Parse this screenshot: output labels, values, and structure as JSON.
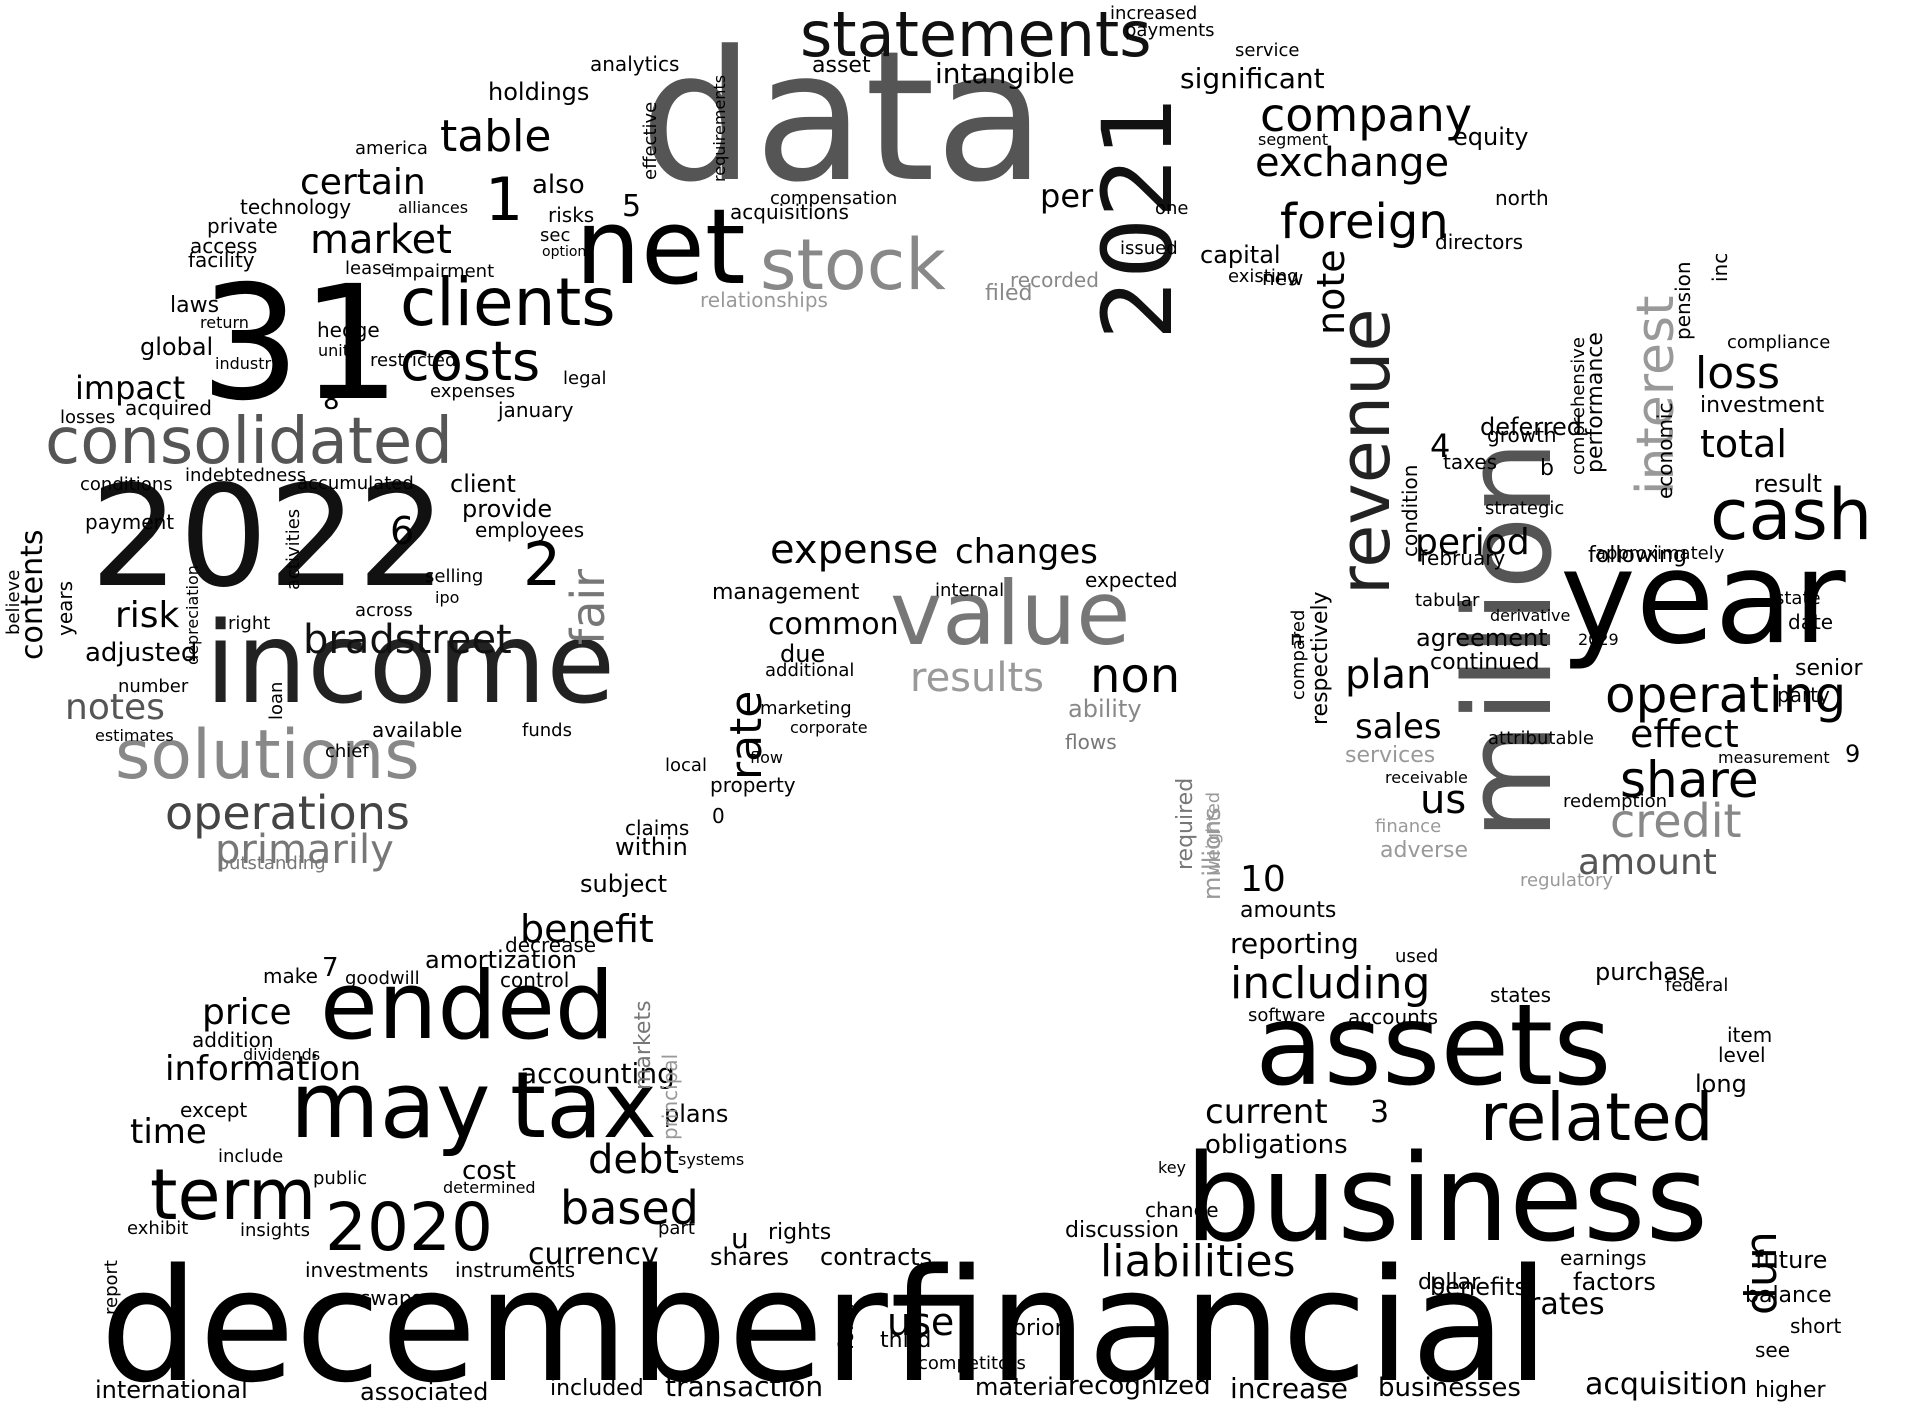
{
  "words": [
    {
      "text": "data",
      "color": "#555555"
    },
    {
      "text": "december",
      "color": "#000000"
    },
    {
      "text": "financial",
      "color": "#000000"
    },
    {
      "text": "business",
      "color": "#000000"
    },
    {
      "text": "assets",
      "color": "#000000"
    },
    {
      "text": "million",
      "color": "#555555"
    },
    {
      "text": "year",
      "color": "#000000"
    },
    {
      "text": "2022",
      "color": "#111111"
    },
    {
      "text": "income",
      "color": "#222222"
    },
    {
      "text": "31",
      "color": "#000000"
    },
    {
      "text": "2021",
      "color": "#111111"
    },
    {
      "text": "net",
      "color": "#000000"
    },
    {
      "text": "ended",
      "color": "#000000"
    },
    {
      "text": "may",
      "color": "#000000"
    },
    {
      "text": "tax",
      "color": "#000000"
    },
    {
      "text": "revenue",
      "color": "#222222"
    },
    {
      "text": "value",
      "color": "#777777"
    },
    {
      "text": "stock",
      "color": "#888888"
    },
    {
      "text": "statements",
      "color": "#111111"
    },
    {
      "text": "consolidated",
      "color": "#555555"
    },
    {
      "text": "solutions",
      "color": "#888888"
    },
    {
      "text": "clients",
      "color": "#000000"
    },
    {
      "text": "costs",
      "color": "#000000"
    },
    {
      "text": "term",
      "color": "#000000"
    },
    {
      "text": "2020",
      "color": "#000000"
    },
    {
      "text": "related",
      "color": "#000000"
    },
    {
      "text": "interest",
      "color": "#999999"
    },
    {
      "text": "cash",
      "color": "#000000"
    },
    {
      "text": "liabilities",
      "color": "#000000"
    },
    {
      "text": "fair",
      "color": "#777777"
    },
    {
      "text": "operations",
      "color": "#444444"
    },
    {
      "text": "primarily",
      "color": "#777777"
    },
    {
      "text": "bradstreet",
      "color": "#111111"
    },
    {
      "text": "foreign",
      "color": "#000000"
    },
    {
      "text": "company",
      "color": "#000000"
    },
    {
      "text": "exchange",
      "color": "#000000"
    },
    {
      "text": "share",
      "color": "#000000"
    },
    {
      "text": "operating",
      "color": "#000000"
    },
    {
      "text": "credit",
      "color": "#888888"
    },
    {
      "text": "including",
      "color": "#000000"
    },
    {
      "text": "based",
      "color": "#000000"
    },
    {
      "text": "debt",
      "color": "#000000"
    },
    {
      "text": "expense",
      "color": "#000000"
    },
    {
      "text": "changes",
      "color": "#000000"
    },
    {
      "text": "results",
      "color": "#999999"
    },
    {
      "text": "non",
      "color": "#000000"
    },
    {
      "text": "rate",
      "color": "#000000"
    },
    {
      "text": "table",
      "color": "#000000"
    },
    {
      "text": "certain",
      "color": "#000000"
    },
    {
      "text": "market",
      "color": "#000000"
    },
    {
      "text": "risk",
      "color": "#000000"
    },
    {
      "text": "notes",
      "color": "#555555"
    },
    {
      "text": "impact",
      "color": "#000000"
    },
    {
      "text": "benefit",
      "color": "#000000"
    },
    {
      "text": "information",
      "color": "#000000"
    },
    {
      "text": "price",
      "color": "#000000"
    },
    {
      "text": "time",
      "color": "#000000"
    },
    {
      "text": "current",
      "color": "#000000"
    },
    {
      "text": "obligations",
      "color": "#000000"
    },
    {
      "text": "loss",
      "color": "#000000"
    },
    {
      "text": "total",
      "color": "#000000"
    },
    {
      "text": "plan",
      "color": "#000000"
    },
    {
      "text": "sales",
      "color": "#000000"
    },
    {
      "text": "us",
      "color": "#000000"
    },
    {
      "text": "effect",
      "color": "#000000"
    },
    {
      "text": "amount",
      "color": "#555555"
    },
    {
      "text": "period",
      "color": "#000000"
    },
    {
      "text": "note",
      "color": "#000000"
    },
    {
      "text": "dun",
      "color": "#000000"
    },
    {
      "text": "rates",
      "color": "#000000"
    },
    {
      "text": "use",
      "color": "#000000"
    },
    {
      "text": "transaction",
      "color": "#000000"
    },
    {
      "text": "acquisition",
      "color": "#000000"
    },
    {
      "text": "increase",
      "color": "#000000"
    },
    {
      "text": "businesses",
      "color": "#000000"
    },
    {
      "text": "international",
      "color": "#000000"
    },
    {
      "text": "associated",
      "color": "#000000"
    },
    {
      "text": "material",
      "color": "#000000"
    },
    {
      "text": "recognized",
      "color": "#000000"
    },
    {
      "text": "also",
      "color": "#000000"
    },
    {
      "text": "intangible",
      "color": "#000000"
    },
    {
      "text": "significant",
      "color": "#000000"
    },
    {
      "text": "holdings",
      "color": "#000000"
    },
    {
      "text": "analytics",
      "color": "#000000"
    },
    {
      "text": "per",
      "color": "#000000"
    },
    {
      "text": "accounting",
      "color": "#000000"
    },
    {
      "text": "cost",
      "color": "#000000"
    },
    {
      "text": "currency",
      "color": "#000000"
    },
    {
      "text": "contracts",
      "color": "#000000"
    },
    {
      "text": "shares",
      "color": "#000000"
    },
    {
      "text": "future",
      "color": "#000000"
    },
    {
      "text": "earnings",
      "color": "#000000"
    },
    {
      "text": "dollar",
      "color": "#000000"
    },
    {
      "text": "long",
      "color": "#000000"
    },
    {
      "text": "purchase",
      "color": "#000000"
    },
    {
      "text": "reporting",
      "color": "#000000"
    },
    {
      "text": "amounts",
      "color": "#000000"
    },
    {
      "text": "within",
      "color": "#000000"
    },
    {
      "text": "subject",
      "color": "#000000"
    },
    {
      "text": "management",
      "color": "#000000"
    },
    {
      "text": "common",
      "color": "#000000"
    },
    {
      "text": "due",
      "color": "#000000"
    },
    {
      "text": "ability",
      "color": "#888888"
    },
    {
      "text": "filed",
      "color": "#888888"
    },
    {
      "text": "capital",
      "color": "#000000"
    },
    {
      "text": "deferred",
      "color": "#000000"
    },
    {
      "text": "agreement",
      "color": "#000000"
    },
    {
      "text": "continued",
      "color": "#000000"
    },
    {
      "text": "following",
      "color": "#000000"
    },
    {
      "text": "result",
      "color": "#000000"
    },
    {
      "text": "investment",
      "color": "#000000"
    },
    {
      "text": "senior",
      "color": "#000000"
    },
    {
      "text": "services",
      "color": "#999999"
    },
    {
      "text": "adverse",
      "color": "#999999"
    },
    {
      "text": "regulatory",
      "color": "#999999"
    },
    {
      "text": "2029",
      "color": "#000000"
    },
    {
      "text": "amortization",
      "color": "#000000"
    },
    {
      "text": "decrease",
      "color": "#000000"
    },
    {
      "text": "goodwill",
      "color": "#000000"
    },
    {
      "text": "control",
      "color": "#000000"
    },
    {
      "text": "make",
      "color": "#000000"
    },
    {
      "text": "addition",
      "color": "#000000"
    },
    {
      "text": "dividends",
      "color": "#000000"
    },
    {
      "text": "except",
      "color": "#000000"
    },
    {
      "text": "include",
      "color": "#000000"
    },
    {
      "text": "public",
      "color": "#000000"
    },
    {
      "text": "determined",
      "color": "#000000"
    },
    {
      "text": "investments",
      "color": "#000000"
    },
    {
      "text": "instruments",
      "color": "#000000"
    },
    {
      "text": "insights",
      "color": "#000000"
    },
    {
      "text": "exhibit",
      "color": "#000000"
    },
    {
      "text": "report",
      "color": "#000000"
    },
    {
      "text": "swaps",
      "color": "#000000"
    },
    {
      "text": "plans",
      "color": "#000000"
    },
    {
      "text": "systems",
      "color": "#000000"
    },
    {
      "text": "part",
      "color": "#000000"
    },
    {
      "text": "rights",
      "color": "#000000"
    },
    {
      "text": "form",
      "color": "#000000"
    },
    {
      "text": "third",
      "color": "#000000"
    },
    {
      "text": "prior",
      "color": "#000000"
    },
    {
      "text": "competitors",
      "color": "#000000"
    },
    {
      "text": "included",
      "color": "#000000"
    },
    {
      "text": "discussion",
      "color": "#000000"
    },
    {
      "text": "change",
      "color": "#000000"
    },
    {
      "text": "key",
      "color": "#000000"
    },
    {
      "text": "benefits",
      "color": "#000000"
    },
    {
      "text": "factors",
      "color": "#000000"
    },
    {
      "text": "balance",
      "color": "#000000"
    },
    {
      "text": "short",
      "color": "#000000"
    },
    {
      "text": "see",
      "color": "#000000"
    },
    {
      "text": "higher",
      "color": "#000000"
    },
    {
      "text": "level",
      "color": "#000000"
    },
    {
      "text": "item",
      "color": "#000000"
    },
    {
      "text": "federal",
      "color": "#000000"
    },
    {
      "text": "states",
      "color": "#000000"
    },
    {
      "text": "accounts",
      "color": "#000000"
    },
    {
      "text": "software",
      "color": "#000000"
    },
    {
      "text": "used",
      "color": "#000000"
    },
    {
      "text": "employees",
      "color": "#000000"
    },
    {
      "text": "provide",
      "color": "#000000"
    },
    {
      "text": "client",
      "color": "#000000"
    },
    {
      "text": "adjusted",
      "color": "#000000"
    },
    {
      "text": "contents",
      "color": "#000000"
    },
    {
      "text": "years",
      "color": "#000000"
    },
    {
      "text": "global",
      "color": "#000000"
    },
    {
      "text": "laws",
      "color": "#000000"
    },
    {
      "text": "facility",
      "color": "#000000"
    },
    {
      "text": "private",
      "color": "#000000"
    },
    {
      "text": "technology",
      "color": "#000000"
    },
    {
      "text": "acquired",
      "color": "#000000"
    },
    {
      "text": "hedge",
      "color": "#000000"
    },
    {
      "text": "expenses",
      "color": "#000000"
    },
    {
      "text": "legal",
      "color": "#000000"
    },
    {
      "text": "january",
      "color": "#000000"
    },
    {
      "text": "available",
      "color": "#000000"
    },
    {
      "text": "funds",
      "color": "#000000"
    },
    {
      "text": "outstanding",
      "color": "#777777"
    },
    {
      "text": "acquisitions",
      "color": "#000000"
    },
    {
      "text": "relationships",
      "color": "#999999"
    },
    {
      "text": "asset",
      "color": "#000000"
    },
    {
      "text": "payments",
      "color": "#000000"
    },
    {
      "text": "service",
      "color": "#000000"
    },
    {
      "text": "equity",
      "color": "#000000"
    },
    {
      "text": "north",
      "color": "#000000"
    },
    {
      "text": "directors",
      "color": "#000000"
    },
    {
      "text": "new",
      "color": "#000000"
    },
    {
      "text": "existing",
      "color": "#000000"
    },
    {
      "text": "growth",
      "color": "#000000"
    },
    {
      "text": "taxes",
      "color": "#000000"
    },
    {
      "text": "february",
      "color": "#000000"
    },
    {
      "text": "strategic",
      "color": "#000000"
    },
    {
      "text": "tabular",
      "color": "#000000"
    },
    {
      "text": "approximately",
      "color": "#000000"
    },
    {
      "text": "party",
      "color": "#000000"
    },
    {
      "text": "date",
      "color": "#000000"
    },
    {
      "text": "state",
      "color": "#000000"
    },
    {
      "text": "compliance",
      "color": "#000000"
    },
    {
      "text": "attributable",
      "color": "#000000"
    },
    {
      "text": "redemption",
      "color": "#000000"
    },
    {
      "text": "derivative",
      "color": "#000000"
    },
    {
      "text": "measurement",
      "color": "#000000"
    },
    {
      "text": "expected",
      "color": "#000000"
    },
    {
      "text": "internal",
      "color": "#000000"
    },
    {
      "text": "marketing",
      "color": "#000000"
    },
    {
      "text": "additional",
      "color": "#000000"
    },
    {
      "text": "corporate",
      "color": "#000000"
    },
    {
      "text": "property",
      "color": "#000000"
    },
    {
      "text": "claims",
      "color": "#000000"
    },
    {
      "text": "local",
      "color": "#000000"
    },
    {
      "text": "flow",
      "color": "#000000"
    },
    {
      "text": "flows",
      "color": "#777777"
    },
    {
      "text": "millions",
      "color": "#999999"
    },
    {
      "text": "required",
      "color": "#777777"
    },
    {
      "text": "markets",
      "color": "#777777"
    },
    {
      "text": "principal",
      "color": "#999999"
    },
    {
      "text": "lease",
      "color": "#000000"
    },
    {
      "text": "impairment",
      "color": "#000000"
    },
    {
      "text": "risks",
      "color": "#000000"
    },
    {
      "text": "sec",
      "color": "#000000"
    },
    {
      "text": "effective",
      "color": "#000000"
    },
    {
      "text": "requirements",
      "color": "#000000"
    },
    {
      "text": "compensation",
      "color": "#000000"
    },
    {
      "text": "america",
      "color": "#000000"
    },
    {
      "text": "alliances",
      "color": "#000000"
    },
    {
      "text": "options",
      "color": "#000000"
    },
    {
      "text": "recorded",
      "color": "#888888"
    },
    {
      "text": "issued",
      "color": "#000000"
    },
    {
      "text": "one",
      "color": "#000000"
    },
    {
      "text": "increased",
      "color": "#000000"
    },
    {
      "text": "segment",
      "color": "#000000"
    },
    {
      "text": "across",
      "color": "#000000"
    },
    {
      "text": "selling",
      "color": "#000000"
    },
    {
      "text": "ipo",
      "color": "#000000"
    },
    {
      "text": "chief",
      "color": "#000000"
    },
    {
      "text": "loan",
      "color": "#000000"
    },
    {
      "text": "number",
      "color": "#000000"
    },
    {
      "text": "right",
      "color": "#000000"
    },
    {
      "text": "estimates",
      "color": "#000000"
    },
    {
      "text": "payment",
      "color": "#000000"
    },
    {
      "text": "accumulated",
      "color": "#000000"
    },
    {
      "text": "indebtedness",
      "color": "#000000"
    },
    {
      "text": "activities",
      "color": "#000000"
    },
    {
      "text": "depreciation",
      "color": "#000000"
    },
    {
      "text": "restricted",
      "color": "#000000"
    },
    {
      "text": "industry",
      "color": "#000000"
    },
    {
      "text": "units",
      "color": "#000000"
    },
    {
      "text": "return",
      "color": "#000000"
    },
    {
      "text": "access",
      "color": "#000000"
    },
    {
      "text": "losses",
      "color": "#000000"
    },
    {
      "text": "conditions",
      "color": "#000000"
    },
    {
      "text": "believe",
      "color": "#000000"
    },
    {
      "text": "inc",
      "color": "#000000"
    },
    {
      "text": "pension",
      "color": "#000000"
    },
    {
      "text": "respectively",
      "color": "#000000"
    },
    {
      "text": "condition",
      "color": "#000000"
    },
    {
      "text": "performance",
      "color": "#000000"
    },
    {
      "text": "comprehensive",
      "color": "#000000"
    },
    {
      "text": "economic",
      "color": "#000000"
    },
    {
      "text": "compared",
      "color": "#000000"
    },
    {
      "text": "finance",
      "color": "#999999"
    },
    {
      "text": "receivable",
      "color": "#000000"
    },
    {
      "text": "weighted",
      "color": "#999999"
    },
    {
      "text": "10",
      "color": "#000000"
    },
    {
      "text": "3",
      "color": "#000000"
    },
    {
      "text": "7",
      "color": "#000000"
    },
    {
      "text": "1",
      "color": "#000000"
    },
    {
      "text": "2",
      "color": "#000000"
    },
    {
      "text": "6",
      "color": "#000000"
    },
    {
      "text": "5",
      "color": "#000000"
    },
    {
      "text": "8",
      "color": "#000000"
    },
    {
      "text": "4",
      "color": "#000000"
    },
    {
      "text": "9",
      "color": "#000000"
    },
    {
      "text": "u",
      "color": "#000000"
    },
    {
      "text": "b",
      "color": "#000000"
    },
    {
      "text": "n",
      "color": "#000000"
    },
    {
      "text": "0",
      "color": "#000000"
    }
  ]
}
